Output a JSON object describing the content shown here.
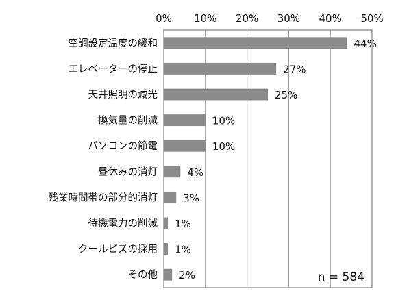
{
  "chart_data": {
    "type": "bar",
    "orientation": "horizontal",
    "categories": [
      "空調設定温度の緩和",
      "エレベーターの停止",
      "天井照明の減光",
      "換気量の削減",
      "パソコンの節電",
      "昼休みの消灯",
      "残業時間帯の部分的消灯",
      "待機電力の削減",
      "クールビズの採用",
      "その他"
    ],
    "values": [
      44,
      27,
      25,
      10,
      10,
      4,
      3,
      1,
      1,
      2
    ],
    "value_labels": [
      "44%",
      "27%",
      "25%",
      "10%",
      "10%",
      "4%",
      "3%",
      "1%",
      "1%",
      "2%"
    ],
    "xlim": [
      0,
      50
    ],
    "xticks": [
      0,
      10,
      20,
      30,
      40,
      50
    ],
    "xtick_labels": [
      "0%",
      "10%",
      "20%",
      "30%",
      "40%",
      "50%"
    ],
    "xaxis_position": "top",
    "grid": true,
    "annotation": "n = 584",
    "annotation_position": "bottom-right",
    "bar_color": "#8c8c8c",
    "border_color": "#9a9a9a"
  }
}
